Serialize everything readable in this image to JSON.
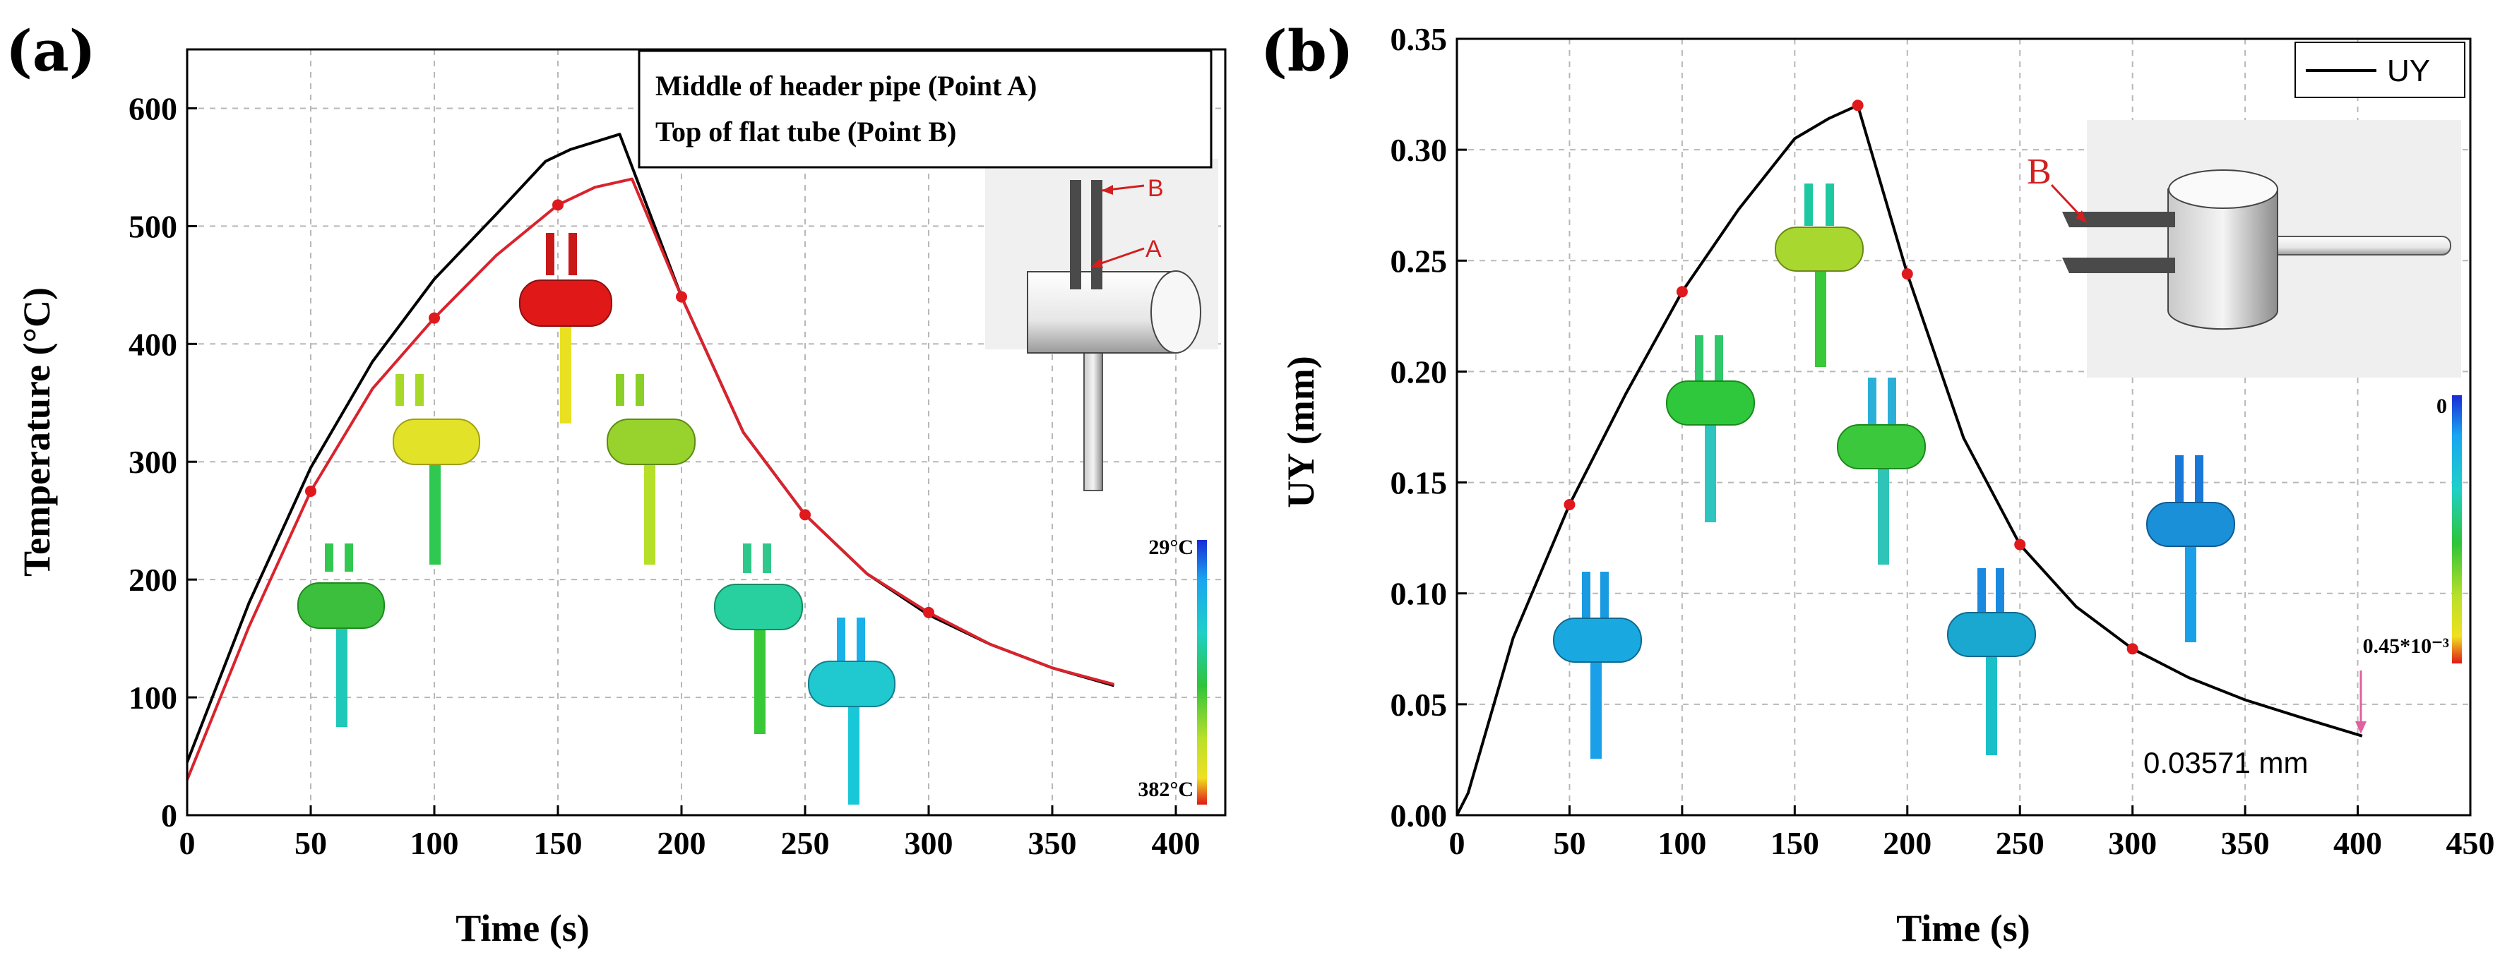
{
  "colors": {
    "black_series": "#000000",
    "red_series": "#d9232d",
    "marker": "#e0191d",
    "grid": "#b8b8b8"
  },
  "chart_data": [
    {
      "panel": "(a)",
      "type": "line",
      "xlabel": "Time (s)",
      "ylabel": "Temperature (°C)",
      "xlim": [
        0,
        420
      ],
      "ylim": [
        0,
        650
      ],
      "x_ticks": [
        "0",
        "50",
        "100",
        "150",
        "200",
        "250",
        "300",
        "350",
        "400"
      ],
      "y_ticks": [
        "0",
        "100",
        "200",
        "300",
        "400",
        "500",
        "600"
      ],
      "legend": [
        "Middle of header pipe (Point A)",
        "Top of flat tube (Point B)"
      ],
      "series": [
        {
          "name": "Top of flat tube (Point B)",
          "color": "black",
          "x": [
            0,
            25,
            50,
            75,
            100,
            125,
            145,
            155,
            175,
            200,
            225,
            250,
            275,
            300,
            325,
            350,
            375
          ],
          "y": [
            45,
            180,
            295,
            385,
            455,
            510,
            555,
            565,
            578,
            440,
            325,
            255,
            205,
            170,
            145,
            125,
            110
          ]
        },
        {
          "name": "Middle of header pipe (Point A)",
          "color": "red",
          "x": [
            0,
            25,
            50,
            75,
            100,
            125,
            150,
            165,
            180,
            200,
            225,
            250,
            275,
            300,
            325,
            350,
            375
          ],
          "y": [
            30,
            160,
            275,
            362,
            422,
            475,
            518,
            533,
            540,
            440,
            325,
            255,
            205,
            172,
            145,
            125,
            111
          ],
          "markers_x": [
            50,
            100,
            150,
            200,
            250,
            300
          ],
          "markers_y": [
            275,
            422,
            518,
            440,
            255,
            172
          ]
        }
      ],
      "inset_labels": [
        "B",
        "A"
      ],
      "colorbar": {
        "top": "29°C",
        "bottom": "382°C"
      }
    },
    {
      "panel": "(b)",
      "type": "line",
      "xlabel": "Time (s)",
      "ylabel": "UY (mm)",
      "xlim": [
        0,
        450
      ],
      "ylim": [
        0,
        0.35
      ],
      "x_ticks": [
        "0",
        "50",
        "100",
        "150",
        "200",
        "250",
        "300",
        "350",
        "400",
        "450"
      ],
      "y_ticks": [
        "0.00",
        "0.05",
        "0.10",
        "0.15",
        "0.20",
        "0.25",
        "0.30",
        "0.35"
      ],
      "legend": [
        "UY"
      ],
      "series": [
        {
          "name": "UY",
          "color": "black",
          "x": [
            0,
            5,
            25,
            50,
            75,
            100,
            125,
            150,
            165,
            178,
            200,
            225,
            250,
            275,
            300,
            325,
            350,
            375,
            402
          ],
          "y": [
            0.0,
            0.01,
            0.08,
            0.14,
            0.19,
            0.236,
            0.273,
            0.305,
            0.314,
            0.32,
            0.244,
            0.17,
            0.122,
            0.094,
            0.075,
            0.062,
            0.052,
            0.044,
            0.0357
          ],
          "markers_x": [
            50,
            100,
            178,
            200,
            250,
            300
          ],
          "markers_y": [
            0.14,
            0.236,
            0.32,
            0.244,
            0.122,
            0.075
          ]
        }
      ],
      "annotation": "0.03571 mm",
      "inset_labels": [
        "B"
      ],
      "colorbar": {
        "top": "0",
        "bottom": "0.45*10⁻³"
      }
    }
  ]
}
